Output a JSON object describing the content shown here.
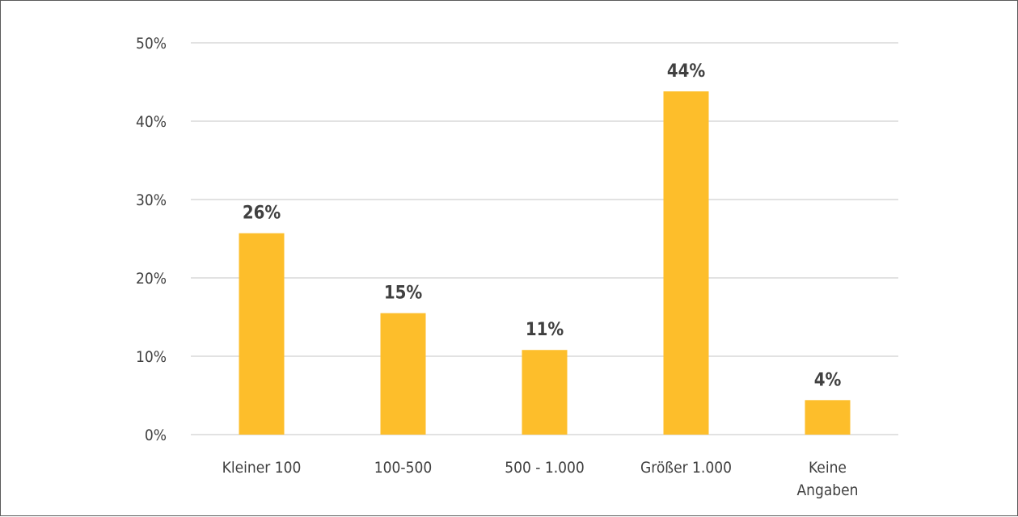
{
  "chart_data": {
    "type": "bar",
    "categories": [
      [
        "Kleiner 100"
      ],
      [
        "100-500"
      ],
      [
        "500 - 1.000"
      ],
      [
        "Größer 1.000"
      ],
      [
        "Keine",
        "Angaben"
      ]
    ],
    "values": [
      25.7,
      15.5,
      10.8,
      43.8,
      4.4
    ],
    "data_labels": [
      "26%",
      "15%",
      "11%",
      "44%",
      "4%"
    ],
    "ylim": [
      0,
      50
    ],
    "yticks": [
      0,
      10,
      20,
      30,
      40,
      50
    ],
    "ytick_labels": [
      "0%",
      "10%",
      "20%",
      "30%",
      "40%",
      "50%"
    ],
    "grid": true,
    "bar_color": "#FDBE2B",
    "gridline_color": "#D9D9D9",
    "text_color": "#404040"
  }
}
